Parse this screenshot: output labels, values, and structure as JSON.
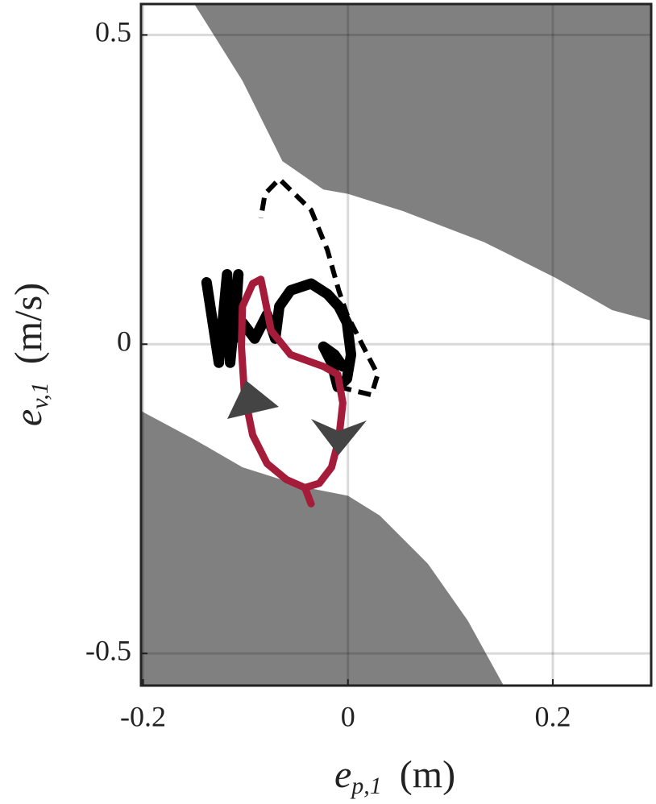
{
  "chart_data": {
    "type": "phase",
    "xlabel": {
      "symbol": "e",
      "subscript": "p,1",
      "unit": "(m)"
    },
    "ylabel": {
      "symbol": "e",
      "subscript": "v,1",
      "unit": "(m/s)"
    },
    "xlim": [
      -0.202,
      0.296
    ],
    "ylim": [
      -0.552,
      0.55
    ],
    "xticks": [
      {
        "value": -0.2,
        "label": "-0.2"
      },
      0,
      0.2
    ],
    "yticks": [
      {
        "value": -0.5,
        "label": "-0.5"
      },
      0,
      0.5
    ],
    "grid": true,
    "series": [
      {
        "style": "fill-above",
        "color": "#808080",
        "x": [
          -0.15,
          -0.103,
          -0.064,
          -0.024,
          0,
          0.054,
          0.133,
          0.203,
          0.258,
          0.296
        ],
        "y": [
          0.55,
          0.426,
          0.296,
          0.25,
          0.243,
          0.215,
          0.165,
          0.107,
          0.055,
          0.038
        ]
      },
      {
        "style": "fill-below",
        "color": "#808080",
        "x": [
          -0.202,
          -0.15,
          -0.103,
          -0.04,
          0,
          0.031,
          0.078,
          0.117,
          0.152
        ],
        "y": [
          -0.108,
          -0.154,
          -0.199,
          -0.232,
          -0.245,
          -0.277,
          -0.355,
          -0.447,
          -0.552
        ]
      },
      {
        "style": "dashed",
        "color": "#000000",
        "x": [
          -0.009,
          0.023,
          0.029,
          0.019,
          0.007,
          -0.001,
          -0.009,
          -0.02,
          -0.036,
          -0.067,
          -0.081,
          -0.085
        ],
        "y": [
          -0.069,
          -0.082,
          -0.049,
          -0.017,
          0.022,
          0.048,
          0.087,
          0.152,
          0.217,
          0.267,
          0.243,
          0.204
        ]
      },
      {
        "style": "solid",
        "color": "#000000",
        "x": [
          -0.138,
          -0.126,
          -0.118,
          -0.115,
          -0.107,
          -0.111,
          -0.103,
          -0.091,
          -0.079,
          -0.071,
          -0.067,
          -0.056,
          -0.036,
          -0.02,
          -0.009,
          -0.001,
          0.003,
          -0.001,
          -0.01,
          -0.016,
          -0.024,
          -0.013,
          -0.005
        ],
        "y": [
          0.1,
          -0.03,
          0.113,
          -0.03,
          0.113,
          0.009,
          0.035,
          0.009,
          0.048,
          0.009,
          0.061,
          0.087,
          0.098,
          0.081,
          0.061,
          0.035,
          -0.017,
          -0.056,
          -0.069,
          -0.03,
          -0.004,
          -0.017,
          -0.036
        ]
      },
      {
        "style": "solid-thin",
        "color": "#a51c3a",
        "x": [
          -0.036,
          -0.042,
          -0.06,
          -0.079,
          -0.093,
          -0.101,
          -0.104,
          -0.103,
          -0.093,
          -0.085,
          -0.082,
          -0.075,
          -0.056,
          -0.024,
          -0.01,
          -0.005,
          -0.009,
          -0.016,
          -0.028,
          -0.042
        ],
        "y": [
          -0.258,
          -0.232,
          -0.219,
          -0.193,
          -0.147,
          -0.082,
          -0.004,
          0.061,
          0.098,
          0.105,
          0.081,
          0.022,
          -0.017,
          -0.036,
          -0.049,
          -0.095,
          -0.154,
          -0.199,
          -0.225,
          -0.232
        ]
      }
    ]
  }
}
